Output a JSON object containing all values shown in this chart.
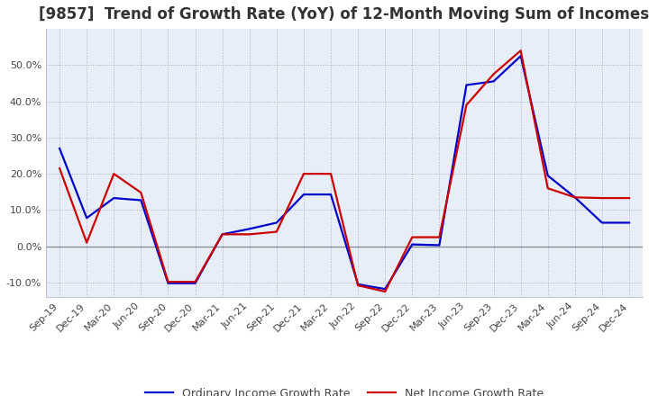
{
  "title": "[9857]  Trend of Growth Rate (YoY) of 12-Month Moving Sum of Incomes",
  "title_fontsize": 12,
  "ylim": [
    -0.14,
    0.6
  ],
  "yticks": [
    -0.1,
    0.0,
    0.1,
    0.2,
    0.3,
    0.4,
    0.5
  ],
  "background_color": "#ffffff",
  "plot_bg_color": "#e8eef8",
  "grid_color": "#aaaacc",
  "legend_labels": [
    "Ordinary Income Growth Rate",
    "Net Income Growth Rate"
  ],
  "legend_colors": [
    "#0000cc",
    "#cc0000"
  ],
  "x_labels": [
    "Sep-19",
    "Dec-19",
    "Mar-20",
    "Jun-20",
    "Sep-20",
    "Dec-20",
    "Mar-21",
    "Jun-21",
    "Sep-21",
    "Dec-21",
    "Mar-22",
    "Jun-22",
    "Sep-22",
    "Dec-22",
    "Mar-23",
    "Jun-23",
    "Sep-23",
    "Dec-23",
    "Mar-24",
    "Jun-24",
    "Sep-24",
    "Dec-24"
  ],
  "ordinary_income": [
    0.27,
    0.078,
    0.133,
    0.127,
    -0.102,
    -0.102,
    0.033,
    0.048,
    0.065,
    0.143,
    0.143,
    -0.105,
    -0.118,
    0.005,
    0.003,
    0.445,
    0.455,
    0.525,
    0.195,
    0.135,
    0.065,
    0.065
  ],
  "net_income": [
    0.215,
    0.01,
    0.2,
    0.148,
    -0.098,
    -0.098,
    0.033,
    0.033,
    0.04,
    0.2,
    0.2,
    -0.108,
    -0.125,
    0.025,
    0.025,
    0.39,
    0.475,
    0.54,
    0.16,
    0.135,
    0.133,
    0.133
  ]
}
